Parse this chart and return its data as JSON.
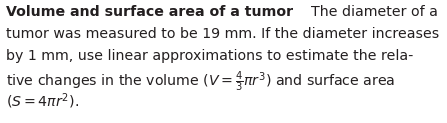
{
  "bold_text": "Volume and surface area of a tumor",
  "line1_normal": "    The diameter of a",
  "line2": "tumor was measured to be 19 mm. If the diameter increases",
  "line3": "by 1 mm, use linear approximations to estimate the rela-",
  "line4_normal": "tive changes in the volume ",
  "line4_math_prefix": "(",
  "line4_math_V": "V",
  "line4_math_eq": " = ",
  "line5": "(S = 4πr²).",
  "font_size": 10.2,
  "text_color": "#231f20",
  "background_color": "#ffffff",
  "fig_width": 4.47,
  "fig_height": 1.23,
  "dpi": 100
}
